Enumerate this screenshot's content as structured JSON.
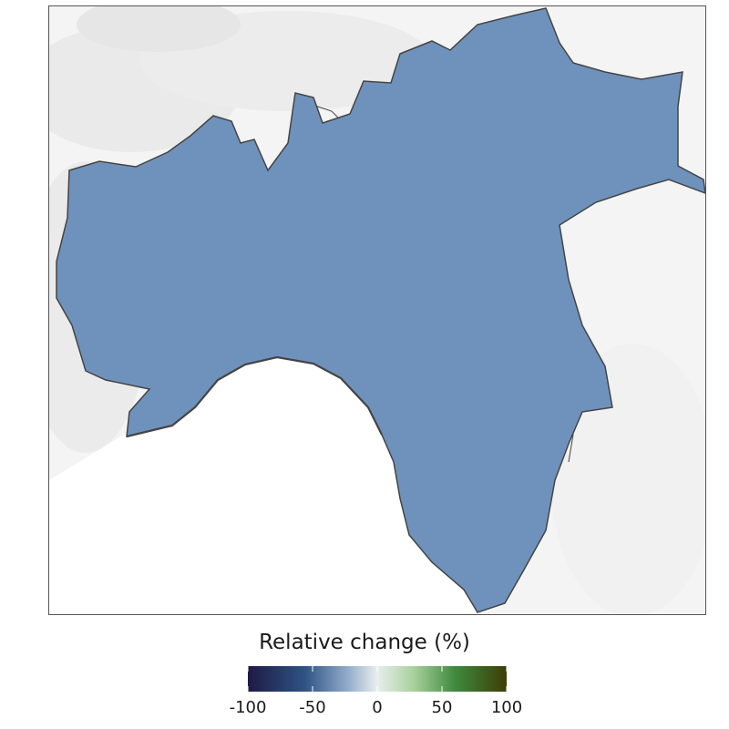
{
  "legend": {
    "title": "Relative change (%)",
    "ticks": [
      {
        "value": -100,
        "label": "-100"
      },
      {
        "value": -50,
        "label": "-50"
      },
      {
        "value": 0,
        "label": "0"
      },
      {
        "value": 50,
        "label": "50"
      },
      {
        "value": 100,
        "label": "100"
      }
    ],
    "range": [
      -100,
      100
    ],
    "colors": {
      "neg_extreme": "#1f1a44",
      "neg_mid": "#2e5384",
      "neg_light": "#8fa9c9",
      "neutral": "#e8eeee",
      "pos_light": "#a9d19c",
      "pos_mid": "#3f8a3e",
      "pos_extreme": "#3d3d06"
    }
  },
  "map": {
    "land_fill": "#6f92bc",
    "land_light": "#c9d8e6",
    "outline": "#444444",
    "background": "#f3f3f3",
    "sea": "#ffffff"
  }
}
